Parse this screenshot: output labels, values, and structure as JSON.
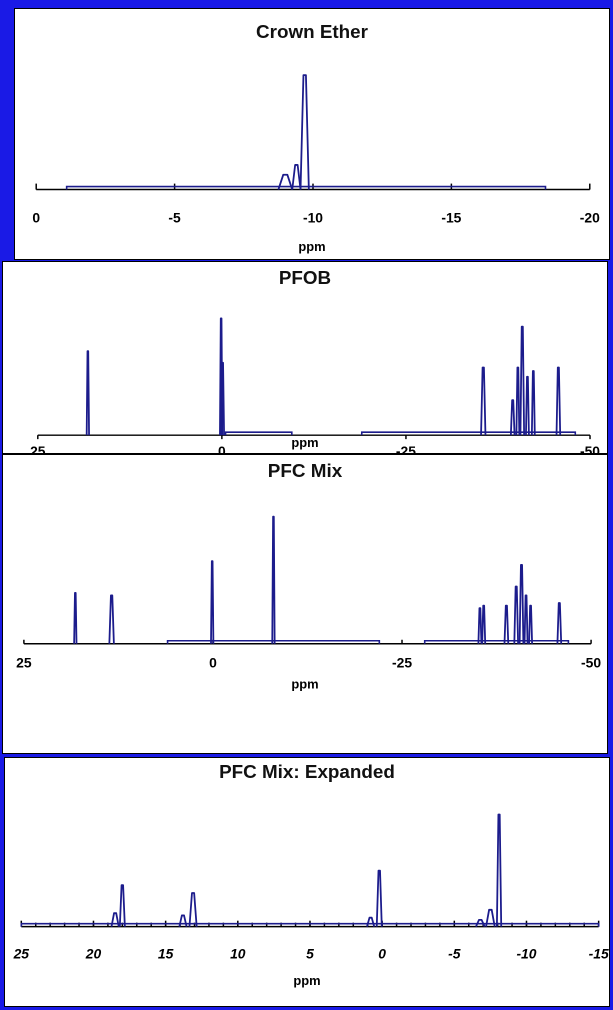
{
  "colors": {
    "background": "#1a1ae6",
    "line": "#1c1c8c",
    "panel": "#ffffff"
  },
  "chart_data": [
    {
      "type": "line",
      "title": "Crown Ether",
      "xlabel": "ppm",
      "xlim": [
        0,
        -20
      ],
      "ylim": [
        0,
        1
      ],
      "x_ticks": [
        0,
        -5,
        -10,
        -15,
        -20
      ],
      "tick_labels": [
        "0",
        "-5",
        "-10",
        "-15",
        "-20"
      ],
      "tick_italic": false,
      "grid": false,
      "baseline_ranges": [
        [
          -1.1,
          -18.4
        ]
      ],
      "peaks": [
        {
          "x": -9.7,
          "height": 0.93,
          "width": 0.3
        },
        {
          "x": -9.4,
          "height": 0.2,
          "width": 0.3
        },
        {
          "x": -9.0,
          "height": 0.12,
          "width": 0.5
        }
      ]
    },
    {
      "type": "line",
      "title": "PFOB",
      "xlabel": "ppm",
      "xlim": [
        25,
        -50
      ],
      "ylim": [
        0,
        1
      ],
      "x_ticks": [
        25,
        0,
        -25,
        -50
      ],
      "tick_labels": [
        "25",
        "0",
        "-25",
        "-50"
      ],
      "tick_italic": false,
      "grid": false,
      "baseline_ranges": [
        [
          -0.5,
          -9.5
        ],
        [
          -19,
          -48
        ]
      ],
      "peaks": [
        {
          "x": 18.2,
          "height": 0.72,
          "width": 0.3
        },
        {
          "x": 0.1,
          "height": 1.0,
          "width": 0.3
        },
        {
          "x": -0.1,
          "height": 0.62,
          "width": 0.4
        },
        {
          "x": -35.5,
          "height": 0.58,
          "width": 0.6
        },
        {
          "x": -39.5,
          "height": 0.3,
          "width": 0.5
        },
        {
          "x": -40.2,
          "height": 0.58,
          "width": 0.4
        },
        {
          "x": -40.8,
          "height": 0.93,
          "width": 0.5
        },
        {
          "x": -41.5,
          "height": 0.5,
          "width": 0.4
        },
        {
          "x": -42.3,
          "height": 0.55,
          "width": 0.4
        },
        {
          "x": -45.7,
          "height": 0.58,
          "width": 0.5
        }
      ]
    },
    {
      "type": "line",
      "title": "PFC Mix",
      "xlabel": "ppm",
      "xlim": [
        25,
        -50
      ],
      "ylim": [
        0,
        1
      ],
      "x_ticks": [
        25,
        0,
        -25,
        -50
      ],
      "tick_labels": [
        "25",
        "0",
        "-25",
        "-50"
      ],
      "tick_italic": false,
      "grid": false,
      "baseline_ranges": [
        [
          6,
          -22
        ],
        [
          -28,
          -47
        ]
      ],
      "peaks": [
        {
          "x": 18.2,
          "height": 0.4,
          "width": 0.3
        },
        {
          "x": 13.4,
          "height": 0.38,
          "width": 0.6
        },
        {
          "x": 0.1,
          "height": 0.65,
          "width": 0.3
        },
        {
          "x": -8.0,
          "height": 1.0,
          "width": 0.3
        },
        {
          "x": -35.3,
          "height": 0.28,
          "width": 0.4
        },
        {
          "x": -35.8,
          "height": 0.3,
          "width": 0.4
        },
        {
          "x": -38.8,
          "height": 0.3,
          "width": 0.5
        },
        {
          "x": -40.1,
          "height": 0.45,
          "width": 0.5
        },
        {
          "x": -40.8,
          "height": 0.62,
          "width": 0.5
        },
        {
          "x": -41.4,
          "height": 0.38,
          "width": 0.4
        },
        {
          "x": -42.0,
          "height": 0.3,
          "width": 0.4
        },
        {
          "x": -45.8,
          "height": 0.32,
          "width": 0.5
        }
      ]
    },
    {
      "type": "line",
      "title": "PFC Mix: Expanded",
      "xlabel": "ppm",
      "xlim": [
        25,
        -15
      ],
      "ylim": [
        0,
        1
      ],
      "x_ticks": [
        25,
        20,
        15,
        10,
        5,
        0,
        -5,
        -10,
        -15
      ],
      "tick_labels": [
        "25",
        "20",
        "15",
        "10",
        "5",
        "0",
        "-5",
        "-10",
        "-15"
      ],
      "tick_italic": true,
      "minor_step": 1,
      "grid": false,
      "baseline_ranges": [
        [
          25,
          -15
        ]
      ],
      "peaks": [
        {
          "x": 18.0,
          "height": 0.37,
          "width": 0.35
        },
        {
          "x": 18.5,
          "height": 0.12,
          "width": 0.5
        },
        {
          "x": 13.1,
          "height": 0.3,
          "width": 0.5
        },
        {
          "x": 13.8,
          "height": 0.1,
          "width": 0.5
        },
        {
          "x": 0.2,
          "height": 0.5,
          "width": 0.35
        },
        {
          "x": 0.8,
          "height": 0.08,
          "width": 0.5
        },
        {
          "x": -8.1,
          "height": 1.0,
          "width": 0.3
        },
        {
          "x": -7.5,
          "height": 0.15,
          "width": 0.6
        },
        {
          "x": -6.8,
          "height": 0.06,
          "width": 0.6
        }
      ]
    }
  ]
}
